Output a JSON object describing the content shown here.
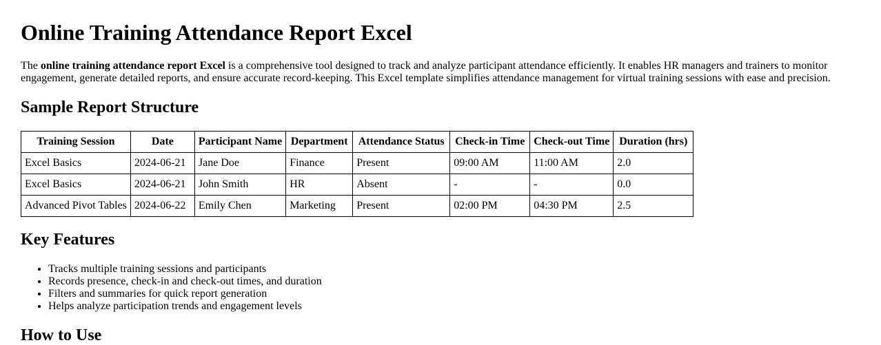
{
  "title": "Online Training Attendance Report Excel",
  "intro": {
    "prefix": "The ",
    "bold": "online training attendance report Excel",
    "rest": " is a comprehensive tool designed to track and analyze participant attendance efficiently. It enables HR managers and trainers to monitor engagement, generate detailed reports, and ensure accurate record-keeping. This Excel template simplifies attendance management for virtual training sessions with ease and precision."
  },
  "sections": {
    "sample_report": {
      "heading": "Sample Report Structure"
    },
    "key_features": {
      "heading": "Key Features",
      "items": [
        "Tracks multiple training sessions and participants",
        "Records presence, check-in and check-out times, and duration",
        "Filters and summaries for quick report generation",
        "Helps analyze participation trends and engagement levels"
      ]
    },
    "how_to_use": {
      "heading": "How to Use"
    }
  },
  "table": {
    "headers": [
      "Training Session",
      "Date",
      "Participant Name",
      "Department",
      "Attendance Status",
      "Check-in Time",
      "Check-out Time",
      "Duration (hrs)"
    ],
    "rows": [
      [
        "Excel Basics",
        "2024-06-21",
        "Jane Doe",
        "Finance",
        "Present",
        "09:00 AM",
        "11:00 AM",
        "2.0"
      ],
      [
        "Excel Basics",
        "2024-06-21",
        "John Smith",
        "HR",
        "Absent",
        "-",
        "-",
        "0.0"
      ],
      [
        "Advanced Pivot Tables",
        "2024-06-22",
        "Emily Chen",
        "Marketing",
        "Present",
        "02:00 PM",
        "04:30 PM",
        "2.5"
      ]
    ]
  },
  "colors": {
    "text": "#000000",
    "background": "#ffffff",
    "table_border": "#000000"
  }
}
